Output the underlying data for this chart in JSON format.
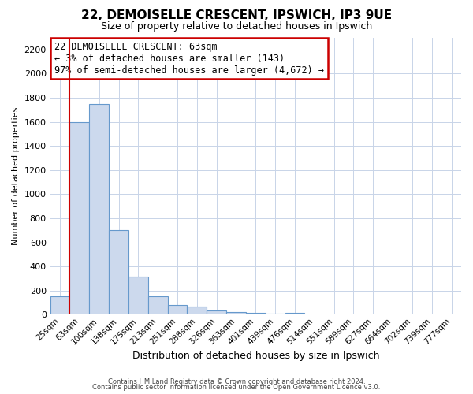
{
  "title": "22, DEMOISELLE CRESCENT, IPSWICH, IP3 9UE",
  "subtitle": "Size of property relative to detached houses in Ipswich",
  "xlabel": "Distribution of detached houses by size in Ipswich",
  "ylabel": "Number of detached properties",
  "bar_labels": [
    "25sqm",
    "63sqm",
    "100sqm",
    "138sqm",
    "175sqm",
    "213sqm",
    "251sqm",
    "288sqm",
    "326sqm",
    "363sqm",
    "401sqm",
    "439sqm",
    "476sqm",
    "514sqm",
    "551sqm",
    "589sqm",
    "627sqm",
    "664sqm",
    "702sqm",
    "739sqm",
    "777sqm"
  ],
  "bar_values": [
    155,
    1600,
    1750,
    700,
    315,
    155,
    80,
    65,
    35,
    20,
    15,
    10,
    15,
    0,
    0,
    0,
    0,
    0,
    0,
    0,
    0
  ],
  "bar_color": "#ccd9ed",
  "bar_edge_color": "#6699cc",
  "ylim": [
    0,
    2300
  ],
  "yticks": [
    0,
    200,
    400,
    600,
    800,
    1000,
    1200,
    1400,
    1600,
    1800,
    2000,
    2200
  ],
  "annotation_title": "22 DEMOISELLE CRESCENT: 63sqm",
  "annotation_line1": "← 3% of detached houses are smaller (143)",
  "annotation_line2": "97% of semi-detached houses are larger (4,672) →",
  "annotation_box_color": "#ffffff",
  "annotation_box_edge": "#cc0000",
  "footer1": "Contains HM Land Registry data © Crown copyright and database right 2024.",
  "footer2": "Contains public sector information licensed under the Open Government Licence v3.0.",
  "bg_color": "#ffffff",
  "grid_color": "#c8d4e8",
  "red_line_color": "#cc0000"
}
